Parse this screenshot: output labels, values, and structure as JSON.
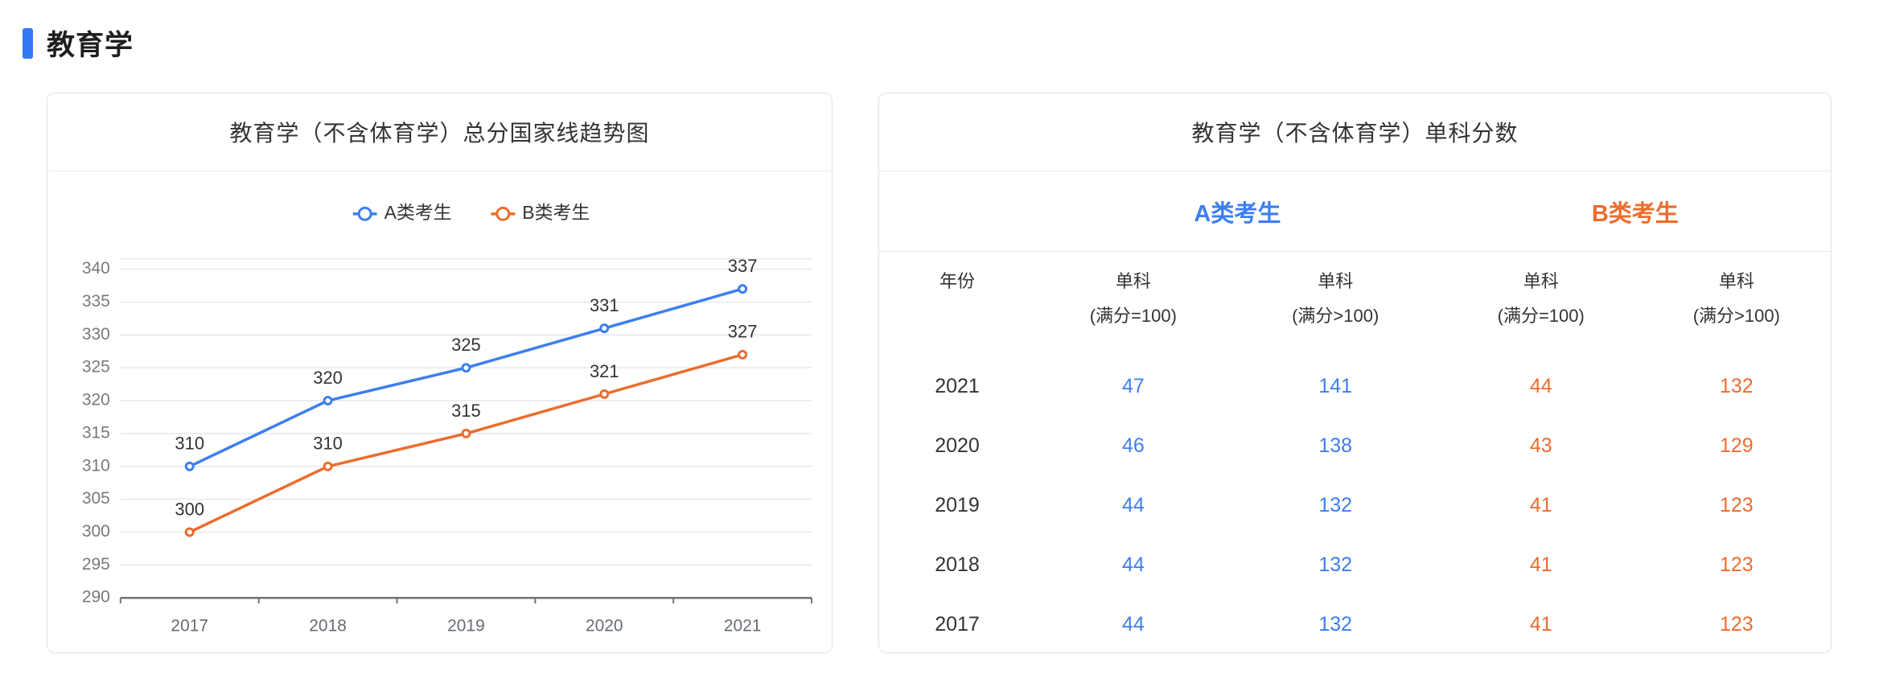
{
  "section": {
    "title": "教育学",
    "accent_color": "#3577F5"
  },
  "colors": {
    "blue": "#3D7EF2",
    "orange": "#ED6C2E",
    "grid_line": "#E4E8EF",
    "axis_line": "#70737A",
    "tick_text": "#76797E",
    "label_text": "#333333"
  },
  "chart_card": {
    "title": "教育学（不含体育学）总分国家线趋势图"
  },
  "chart_data": {
    "type": "line",
    "title": "教育学（不含体育学）总分国家线趋势图",
    "categories": [
      "2017",
      "2018",
      "2019",
      "2020",
      "2021"
    ],
    "series": [
      {
        "name": "A类考生",
        "color": "#3D7EF2",
        "values": [
          310,
          320,
          325,
          331,
          337
        ]
      },
      {
        "name": "B类考生",
        "color": "#ED6C2E",
        "values": [
          300,
          310,
          315,
          321,
          327
        ]
      }
    ],
    "ylim": [
      290,
      340
    ],
    "yticks": [
      290,
      295,
      300,
      305,
      310,
      315,
      320,
      325,
      330,
      335,
      340
    ],
    "grid": true,
    "legend_position": "top",
    "point_labels": true
  },
  "table_card": {
    "title": "教育学（不含体育学）单科分数",
    "group_headers": [
      {
        "label": "A类考生",
        "color": "#3D7EF2"
      },
      {
        "label": "B类考生",
        "color": "#ED6C2E"
      }
    ],
    "columns": [
      {
        "label": "年份",
        "sub": ""
      },
      {
        "label": "单科",
        "sub": "(满分=100)",
        "group": "A"
      },
      {
        "label": "单科",
        "sub": "(满分>100)",
        "group": "A"
      },
      {
        "label": "单科",
        "sub": "(满分=100)",
        "group": "B"
      },
      {
        "label": "单科",
        "sub": "(满分>100)",
        "group": "B"
      }
    ],
    "rows": [
      {
        "year": "2021",
        "values": [
          47,
          141,
          44,
          132
        ]
      },
      {
        "year": "2020",
        "values": [
          46,
          138,
          43,
          129
        ]
      },
      {
        "year": "2019",
        "values": [
          44,
          132,
          41,
          123
        ]
      },
      {
        "year": "2018",
        "values": [
          44,
          132,
          41,
          123
        ]
      },
      {
        "year": "2017",
        "values": [
          44,
          132,
          41,
          123
        ]
      }
    ]
  }
}
